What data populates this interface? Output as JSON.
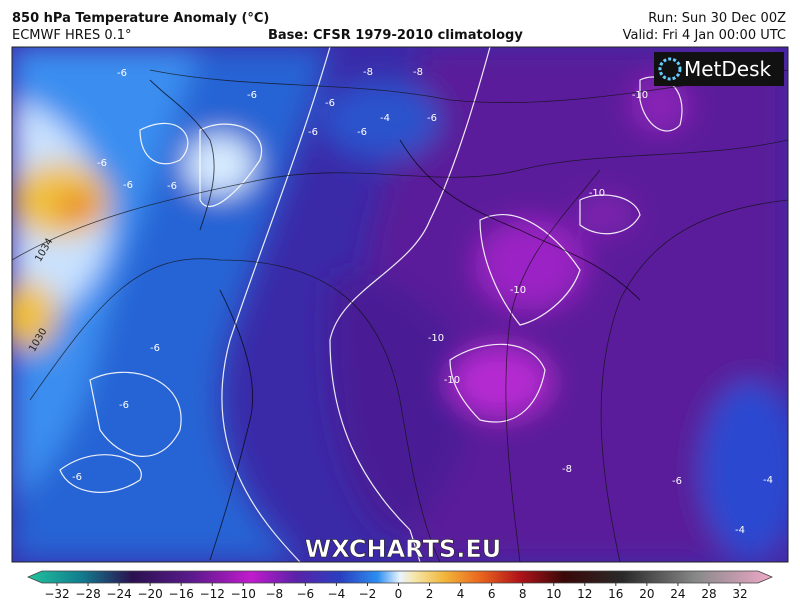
{
  "header": {
    "title": "850 hPa Temperature Anomaly (°C)",
    "model": "ECMWF HRES 0.1°",
    "base": "Base: CFSR 1979-2010 climatology",
    "run": "Run: Sun 30 Dec 00Z",
    "valid": "Valid: Fri 4 Jan 00:00 UTC"
  },
  "logo": "MetDesk",
  "watermark": "WXCHARTS.EU",
  "map": {
    "contour_labels": [
      "-6",
      "-8",
      "-8",
      "-6",
      "-6",
      "-6",
      "-4",
      "-6",
      "-6",
      "-6",
      "-6",
      "-6",
      "-10",
      "-10",
      "-10",
      "-10",
      "-10",
      "-6",
      "-6",
      "-6",
      "-8",
      "-6",
      "-4",
      "-4",
      "1034",
      "1030"
    ]
  },
  "colorbar": {
    "labels": [
      "−32",
      "−28",
      "−24",
      "−20",
      "−16",
      "−12",
      "−10",
      "−8",
      "−6",
      "−4",
      "−2",
      "0",
      "2",
      "4",
      "6",
      "8",
      "10",
      "12",
      "16",
      "20",
      "24",
      "28",
      "32"
    ]
  }
}
